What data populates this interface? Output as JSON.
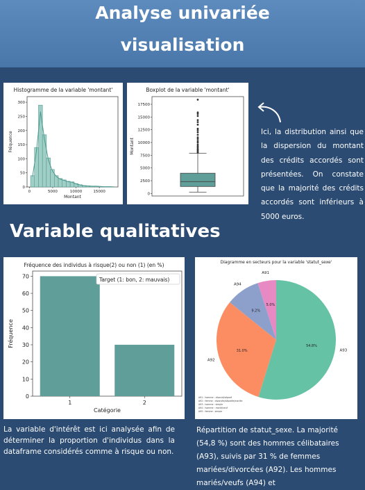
{
  "header": {
    "line1": "Analyse univariée",
    "line2": "visualisation"
  },
  "histogram": {
    "title": "Histogramme de la variable 'montant'",
    "xlabel": "Montant",
    "ylabel": "Fréquence",
    "yticks": [
      "0",
      "50",
      "100",
      "150",
      "200",
      "250",
      "300"
    ],
    "xticks": [
      "0",
      "5000",
      "10000",
      "15000"
    ]
  },
  "boxplot": {
    "title": "Boxplot de la variable 'montant'",
    "ylabel": "Montant",
    "yticks": [
      "0",
      "2500",
      "5000",
      "7500",
      "10000",
      "12500",
      "15000",
      "17500"
    ]
  },
  "right_text": "Ici, la distribution ainsi que la dispersion du montant des crédits accordés sont présentées. On constate que la majorité des crédits accordés sont inférieurs à 5000 euros.",
  "section_title": "Variable qualitatives",
  "bar": {
    "title": "Fréquence des individus à risque(2) ou non (1) (en %)",
    "legend": "Target (1: bon, 2: mauvais)",
    "xlabel": "Catégorie",
    "ylabel": "Fréquence",
    "yticks": [
      "0",
      "10",
      "20",
      "30",
      "40",
      "50",
      "60",
      "70"
    ],
    "xticks": [
      "1",
      "2"
    ]
  },
  "pie": {
    "title": "Diagramme en secteurs pour la variable 'statut_sexe'",
    "labels": {
      "A91": "A91",
      "A92": "A92",
      "A93": "A93",
      "A94": "A94"
    },
    "pcts": {
      "A91": "5.0%",
      "A92": "31.0%",
      "A93": "54.8%",
      "A94": "9.2%"
    },
    "legend": [
      "A91 : homme : divorcé/séparé",
      "A92 : femme : divorcée/séparée/mariée",
      "A93 : homme : simple",
      "A94 : homme : marié/veuf",
      "A95 : femme : simple"
    ]
  },
  "left_text": "La variable d'intérêt est ici analysée afin de déterminer la proportion d'individus dans la dataframe considérés comme à risque ou non.",
  "right_text2": "Répartition de statut_sexe. La majorité (54,8 %) sont des hommes célibataires (A93), suivis par 31 % de femmes mariées/divorcées (A92). Les hommes mariés/veufs (A94) et",
  "colors": {
    "bar": "#5f9e99",
    "A91": "#e78ac3",
    "A92": "#fc8d62",
    "A93": "#66c2a5",
    "A94": "#8da0cb"
  },
  "chart_data": [
    {
      "type": "bar",
      "title": "Histogramme de la variable 'montant'",
      "xlabel": "Montant",
      "ylabel": "Fréquence",
      "bin_edges": [
        250,
        1100,
        1950,
        2800,
        3650,
        4500,
        5350,
        6200,
        7050,
        7900,
        8750,
        9600,
        10450,
        11300,
        12150,
        13000,
        13850,
        14700,
        15550,
        16400,
        17250,
        18100
      ],
      "values": [
        40,
        140,
        290,
        185,
        103,
        62,
        40,
        30,
        25,
        20,
        18,
        12,
        8,
        5,
        4,
        3,
        3,
        2,
        1,
        1,
        1
      ],
      "xlim": [
        -500,
        19000
      ],
      "ylim": [
        0,
        320
      ]
    },
    {
      "type": "boxplot",
      "title": "Boxplot de la variable 'montant'",
      "ylabel": "Montant",
      "min": 250,
      "q1": 1366,
      "median": 2320,
      "q3": 3972,
      "whisker_high": 7882,
      "outliers": [
        8000,
        8250,
        8500,
        8700,
        9000,
        9300,
        9600,
        10000,
        10300,
        10700,
        11000,
        11500,
        12000,
        12400,
        12700,
        13500,
        14000,
        14400,
        15200,
        15600,
        15900,
        18400
      ],
      "ylim": [
        -500,
        19000
      ]
    },
    {
      "type": "bar",
      "title": "Fréquence des individus à risque(2) ou non (1) (en %)",
      "categories": [
        "1",
        "2"
      ],
      "values": [
        70,
        30
      ],
      "xlabel": "Catégorie",
      "ylabel": "Fréquence",
      "ylim": [
        0,
        73
      ]
    },
    {
      "type": "pie",
      "title": "Diagramme en secteurs pour la variable 'statut_sexe'",
      "categories": [
        "A91",
        "A94",
        "A92",
        "A93"
      ],
      "values": [
        5.0,
        9.2,
        31.0,
        54.8
      ]
    }
  ]
}
